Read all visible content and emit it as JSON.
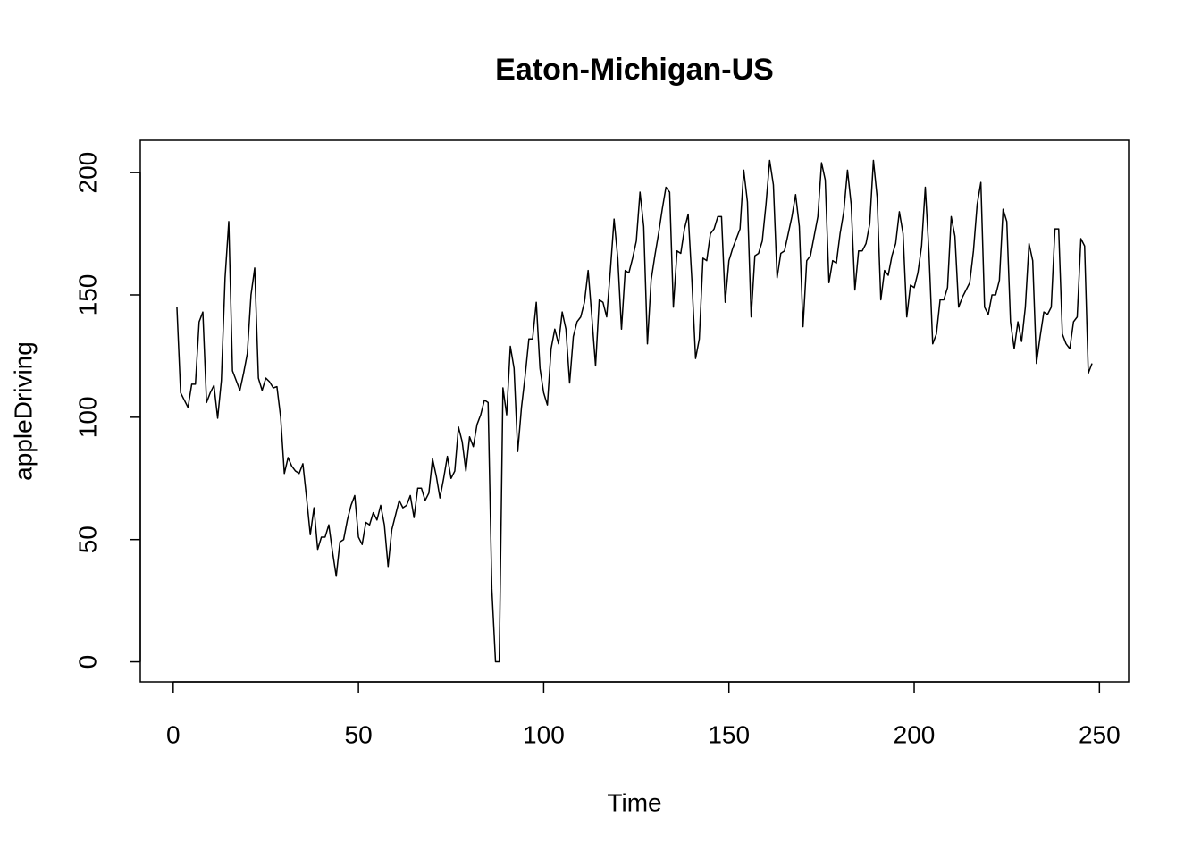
{
  "chart_data": {
    "type": "line",
    "title": "Eaton-Michigan-US",
    "x_label": "Time",
    "y_label": "appleDriving",
    "xlim": [
      -8.88,
      257.88
    ],
    "ylim": [
      -8.2,
      213.2
    ],
    "xticks": [
      0,
      50,
      100,
      150,
      200,
      250
    ],
    "yticks": [
      0,
      50,
      100,
      150,
      200
    ],
    "series": [
      {
        "name": "appleDriving",
        "color": "#000000",
        "x": [
          1,
          2,
          3,
          4,
          5,
          6,
          7,
          8,
          9,
          10,
          11,
          12,
          13,
          14,
          15,
          16,
          17,
          18,
          19,
          20,
          21,
          22,
          23,
          24,
          25,
          26,
          27,
          28,
          29,
          30,
          31,
          32,
          33,
          34,
          35,
          36,
          37,
          38,
          39,
          40,
          41,
          42,
          43,
          44,
          45,
          46,
          47,
          48,
          49,
          50,
          51,
          52,
          53,
          54,
          55,
          56,
          57,
          58,
          59,
          60,
          61,
          62,
          63,
          64,
          65,
          66,
          67,
          68,
          69,
          70,
          71,
          72,
          73,
          74,
          75,
          76,
          77,
          78,
          79,
          80,
          81,
          82,
          83,
          84,
          85,
          86,
          87,
          88,
          89,
          90,
          91,
          92,
          93,
          94,
          95,
          96,
          97,
          98,
          99,
          100,
          101,
          102,
          103,
          104,
          105,
          106,
          107,
          108,
          109,
          110,
          111,
          112,
          113,
          114,
          115,
          116,
          117,
          118,
          119,
          120,
          121,
          122,
          123,
          124,
          125,
          126,
          127,
          128,
          129,
          130,
          131,
          132,
          133,
          134,
          135,
          136,
          137,
          138,
          139,
          140,
          141,
          142,
          143,
          144,
          145,
          146,
          147,
          148,
          149,
          150,
          151,
          152,
          153,
          154,
          155,
          156,
          157,
          158,
          159,
          160,
          161,
          162,
          163,
          164,
          165,
          166,
          167,
          168,
          169,
          170,
          171,
          172,
          173,
          174,
          175,
          176,
          177,
          178,
          179,
          180,
          181,
          182,
          183,
          184,
          185,
          186,
          187,
          188,
          189,
          190,
          191,
          192,
          193,
          194,
          195,
          196,
          197,
          198,
          199,
          200,
          201,
          202,
          203,
          204,
          205,
          206,
          207,
          208,
          209,
          210,
          211,
          212,
          213,
          214,
          215,
          216,
          217,
          218,
          219,
          220,
          221,
          222,
          223,
          224,
          225,
          226,
          227,
          228,
          229,
          230,
          231,
          232,
          233,
          234,
          235,
          236,
          237,
          238,
          239,
          240,
          241,
          242,
          243,
          244,
          245,
          246,
          247,
          248
        ],
        "values": [
          145,
          110,
          107,
          104,
          113.5,
          113.5,
          139,
          143,
          106,
          110,
          113,
          99.6,
          115,
          157,
          180,
          119,
          115,
          111,
          118,
          126,
          150,
          161,
          116,
          111,
          116,
          114.5,
          112,
          112.5,
          100,
          77,
          83.5,
          80,
          78,
          77,
          81,
          67,
          52,
          63,
          46,
          51,
          51,
          56,
          45,
          35,
          49,
          50,
          58,
          64,
          68,
          51,
          48,
          57,
          56,
          61,
          58,
          64,
          56,
          39,
          54,
          60,
          66,
          63,
          64,
          68,
          59,
          71,
          71,
          66,
          69,
          83,
          76,
          67,
          75,
          84,
          75,
          78,
          96,
          90,
          78,
          92,
          88,
          97,
          101,
          107,
          106,
          30,
          0,
          0,
          112,
          101,
          129,
          120,
          86,
          104,
          117,
          132,
          132,
          147,
          120,
          110,
          105,
          128,
          136,
          130,
          143,
          136,
          114,
          133,
          139,
          141,
          147,
          160,
          141,
          121,
          148,
          147,
          141,
          160,
          181,
          165,
          136,
          160,
          159,
          165,
          172,
          192,
          178,
          130,
          156,
          166,
          175,
          185,
          194,
          192,
          145,
          168,
          167,
          177,
          183,
          156,
          124,
          132,
          165,
          164,
          175,
          177,
          182,
          182,
          147,
          164,
          169,
          173,
          177,
          201,
          188,
          141,
          166,
          167,
          172,
          187,
          205,
          195,
          157,
          167,
          168,
          175,
          182,
          191,
          178,
          137,
          164,
          166,
          174,
          182,
          204,
          197,
          155,
          164,
          163,
          175,
          184,
          201,
          187,
          152,
          168,
          168,
          171,
          179,
          205,
          190,
          148,
          160,
          158,
          166,
          171,
          184,
          175,
          141,
          154,
          153,
          159,
          170,
          194,
          167,
          130,
          134,
          148,
          148,
          153,
          182,
          174,
          145,
          149,
          152,
          155,
          168,
          187,
          196,
          145,
          142,
          150,
          150,
          156,
          185,
          180,
          139,
          128,
          139,
          131,
          145,
          171,
          164,
          122,
          133,
          143,
          142,
          145,
          177,
          177,
          134,
          130,
          128,
          139,
          141,
          173,
          170,
          118,
          122
        ]
      }
    ]
  }
}
